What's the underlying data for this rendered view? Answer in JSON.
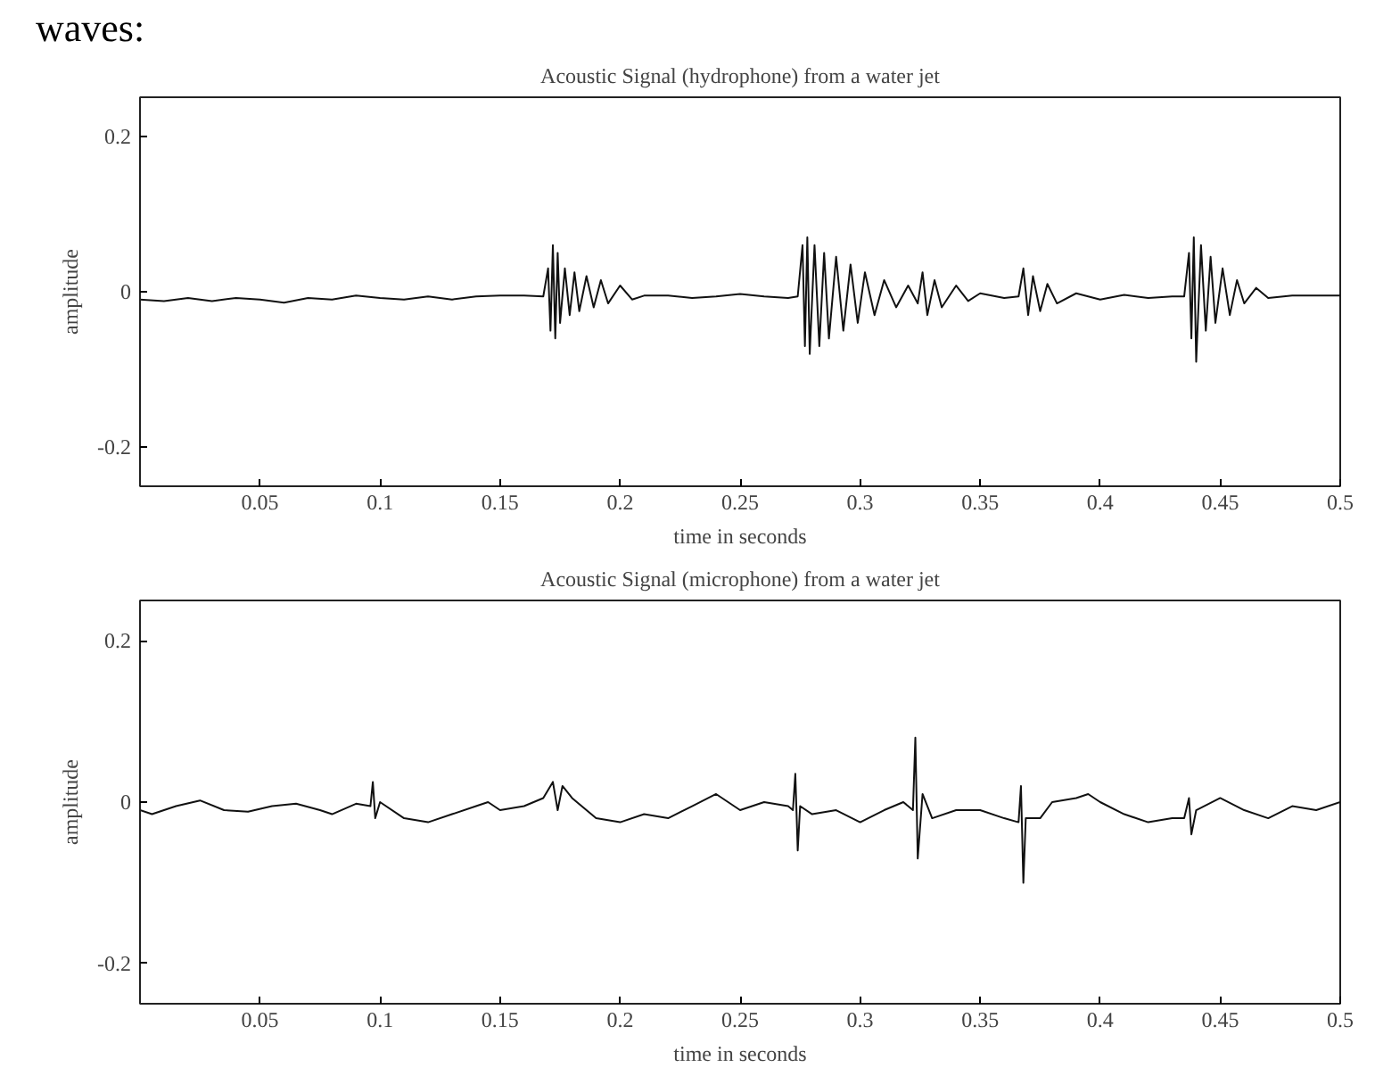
{
  "chart_data": [
    {
      "type": "line",
      "title": "Acoustic Signal (hydrophone) from a water jet",
      "xlabel": "time in seconds",
      "ylabel": "amplitude",
      "annotations": [
        "waves:"
      ],
      "xlim": [
        0,
        0.5
      ],
      "ylim": [
        -0.25,
        0.25
      ],
      "xticks": [
        0.05,
        0.1,
        0.15,
        0.2,
        0.25,
        0.3,
        0.35,
        0.4,
        0.45,
        0.5
      ],
      "yticks": [
        -0.2,
        0,
        0.2
      ],
      "grid": false,
      "line_style": "solid",
      "series": [
        {
          "color": "#111111",
          "x": [
            0,
            0.01,
            0.02,
            0.03,
            0.04,
            0.05,
            0.06,
            0.07,
            0.08,
            0.09,
            0.1,
            0.11,
            0.12,
            0.13,
            0.14,
            0.15,
            0.16,
            0.168,
            0.17,
            0.171,
            0.172,
            0.173,
            0.174,
            0.175,
            0.177,
            0.179,
            0.181,
            0.183,
            0.186,
            0.189,
            0.192,
            0.195,
            0.2,
            0.205,
            0.21,
            0.22,
            0.23,
            0.24,
            0.25,
            0.26,
            0.27,
            0.274,
            0.276,
            0.277,
            0.278,
            0.279,
            0.281,
            0.283,
            0.285,
            0.287,
            0.29,
            0.293,
            0.296,
            0.299,
            0.302,
            0.306,
            0.31,
            0.315,
            0.32,
            0.324,
            0.326,
            0.328,
            0.331,
            0.334,
            0.34,
            0.345,
            0.35,
            0.36,
            0.366,
            0.368,
            0.37,
            0.372,
            0.375,
            0.378,
            0.382,
            0.39,
            0.4,
            0.41,
            0.42,
            0.43,
            0.435,
            0.437,
            0.438,
            0.439,
            0.44,
            0.442,
            0.444,
            0.446,
            0.448,
            0.451,
            0.454,
            0.457,
            0.46,
            0.465,
            0.47,
            0.48,
            0.49,
            0.5
          ],
          "values": [
            -0.01,
            -0.012,
            -0.008,
            -0.012,
            -0.008,
            -0.01,
            -0.014,
            -0.008,
            -0.01,
            -0.005,
            -0.008,
            -0.01,
            -0.006,
            -0.01,
            -0.006,
            -0.005,
            -0.005,
            -0.006,
            0.03,
            -0.05,
            0.06,
            -0.06,
            0.05,
            -0.04,
            0.03,
            -0.03,
            0.025,
            -0.025,
            0.02,
            -0.02,
            0.015,
            -0.015,
            0.008,
            -0.01,
            -0.005,
            -0.005,
            -0.008,
            -0.006,
            -0.003,
            -0.006,
            -0.008,
            -0.006,
            0.06,
            -0.07,
            0.07,
            -0.08,
            0.06,
            -0.07,
            0.05,
            -0.06,
            0.045,
            -0.05,
            0.035,
            -0.04,
            0.025,
            -0.03,
            0.015,
            -0.02,
            0.008,
            -0.015,
            0.025,
            -0.03,
            0.015,
            -0.02,
            0.008,
            -0.012,
            -0.002,
            -0.008,
            -0.006,
            0.03,
            -0.03,
            0.02,
            -0.025,
            0.01,
            -0.015,
            -0.002,
            -0.01,
            -0.004,
            -0.008,
            -0.006,
            -0.006,
            0.05,
            -0.06,
            0.07,
            -0.09,
            0.06,
            -0.05,
            0.045,
            -0.04,
            0.03,
            -0.03,
            0.015,
            -0.015,
            0.005,
            -0.008,
            -0.005,
            -0.005,
            -0.005
          ]
        }
      ]
    },
    {
      "type": "line",
      "title": "Acoustic Signal (microphone) from a water jet",
      "xlabel": "time in seconds",
      "ylabel": "amplitude",
      "xlim": [
        0,
        0.5
      ],
      "ylim": [
        -0.25,
        0.25
      ],
      "xticks": [
        0.05,
        0.1,
        0.15,
        0.2,
        0.25,
        0.3,
        0.35,
        0.4,
        0.45,
        0.5
      ],
      "yticks": [
        -0.2,
        0,
        0.2
      ],
      "grid": false,
      "line_style": "solid",
      "series": [
        {
          "color": "#111111",
          "x": [
            0,
            0.005,
            0.015,
            0.025,
            0.035,
            0.045,
            0.055,
            0.065,
            0.075,
            0.08,
            0.09,
            0.096,
            0.097,
            0.098,
            0.1,
            0.11,
            0.12,
            0.13,
            0.14,
            0.145,
            0.15,
            0.16,
            0.168,
            0.172,
            0.174,
            0.176,
            0.18,
            0.19,
            0.2,
            0.21,
            0.22,
            0.23,
            0.24,
            0.25,
            0.26,
            0.27,
            0.272,
            0.273,
            0.274,
            0.275,
            0.28,
            0.29,
            0.3,
            0.31,
            0.318,
            0.322,
            0.323,
            0.324,
            0.326,
            0.33,
            0.34,
            0.35,
            0.36,
            0.366,
            0.367,
            0.368,
            0.369,
            0.375,
            0.38,
            0.39,
            0.395,
            0.4,
            0.41,
            0.42,
            0.43,
            0.435,
            0.437,
            0.438,
            0.44,
            0.45,
            0.46,
            0.47,
            0.48,
            0.49,
            0.5
          ],
          "values": [
            -0.01,
            -0.015,
            -0.005,
            0.002,
            -0.01,
            -0.012,
            -0.005,
            -0.002,
            -0.01,
            -0.015,
            -0.002,
            -0.005,
            0.025,
            -0.02,
            0.0,
            -0.02,
            -0.025,
            -0.015,
            -0.005,
            0.0,
            -0.01,
            -0.005,
            0.005,
            0.025,
            -0.01,
            0.02,
            0.005,
            -0.02,
            -0.025,
            -0.015,
            -0.02,
            -0.005,
            0.01,
            -0.01,
            0.0,
            -0.005,
            -0.01,
            0.035,
            -0.06,
            -0.005,
            -0.015,
            -0.01,
            -0.025,
            -0.01,
            0.0,
            -0.01,
            0.08,
            -0.07,
            0.01,
            -0.02,
            -0.01,
            -0.01,
            -0.02,
            -0.025,
            0.02,
            -0.1,
            -0.02,
            -0.02,
            0.0,
            0.005,
            0.01,
            0.0,
            -0.015,
            -0.025,
            -0.02,
            -0.02,
            0.005,
            -0.04,
            -0.01,
            0.005,
            -0.01,
            -0.02,
            -0.005,
            -0.01,
            0.0
          ]
        }
      ]
    }
  ]
}
